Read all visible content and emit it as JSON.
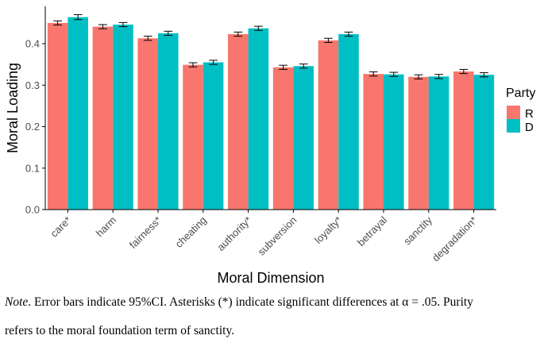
{
  "chart_data": {
    "type": "bar",
    "categories": [
      "care*",
      "harm",
      "fairness*",
      "cheating",
      "authority*",
      "subversion",
      "loyalty*",
      "betrayal",
      "sanctity",
      "degradation*"
    ],
    "series": [
      {
        "name": "R",
        "values": [
          0.45,
          0.441,
          0.413,
          0.349,
          0.423,
          0.343,
          0.408,
          0.327,
          0.32,
          0.333
        ],
        "ci": [
          0.005,
          0.005,
          0.005,
          0.005,
          0.005,
          0.005,
          0.005,
          0.005,
          0.005,
          0.005
        ]
      },
      {
        "name": "D",
        "values": [
          0.464,
          0.446,
          0.425,
          0.355,
          0.437,
          0.346,
          0.423,
          0.326,
          0.321,
          0.325
        ],
        "ci": [
          0.006,
          0.005,
          0.005,
          0.005,
          0.005,
          0.005,
          0.005,
          0.005,
          0.005,
          0.005
        ]
      }
    ],
    "xlabel": "Moral Dimension",
    "ylabel": "Moral Loading",
    "ylim": [
      0,
      0.49
    ],
    "yticks": [
      "0.0",
      "0.1",
      "0.2",
      "0.3",
      "0.4"
    ],
    "legend": {
      "title": "Party",
      "position": "right"
    },
    "colors": {
      "R": "#F8766D",
      "D": "#00BFC4"
    },
    "grid": false
  },
  "note": {
    "label": "Note",
    "line1": ". Error bars indicate 95%CI. Asterisks (*) indicate significant differences at α = .05. Purity",
    "line2": "refers to the moral foundation term of sanctity."
  }
}
